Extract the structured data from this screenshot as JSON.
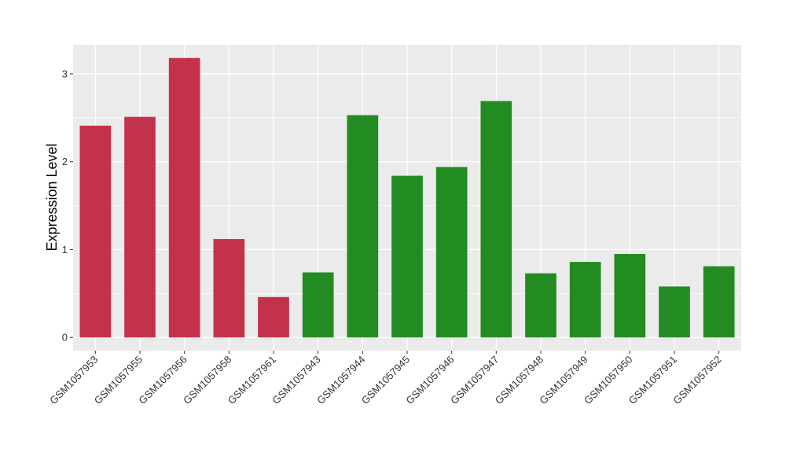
{
  "chart_data": {
    "type": "bar",
    "title": "",
    "xlabel": "",
    "ylabel": "Expression Level",
    "ylim": [
      -0.15,
      3.33
    ],
    "yticks": [
      0,
      1,
      2,
      3
    ],
    "grid": true,
    "legend": "none",
    "categories": [
      "GSM1057953",
      "GSM1057955",
      "GSM1057956",
      "GSM1057958",
      "GSM1057961",
      "GSM1057943",
      "GSM1057944",
      "GSM1057945",
      "GSM1057946",
      "GSM1057947",
      "GSM1057948",
      "GSM1057949",
      "GSM1057950",
      "GSM1057951",
      "GSM1057952"
    ],
    "values": [
      2.41,
      2.51,
      3.18,
      1.12,
      0.46,
      0.74,
      2.53,
      1.84,
      1.94,
      2.69,
      0.73,
      0.86,
      0.95,
      0.58,
      0.81
    ],
    "group_colors": [
      "#C3324A",
      "#C3324A",
      "#C3324A",
      "#C3324A",
      "#C3324A",
      "#228B22",
      "#228B22",
      "#228B22",
      "#228B22",
      "#228B22",
      "#228B22",
      "#228B22",
      "#228B22",
      "#228B22",
      "#228B22"
    ],
    "panel_background": "#EBEBEB",
    "grid_color": "#FFFFFF"
  }
}
